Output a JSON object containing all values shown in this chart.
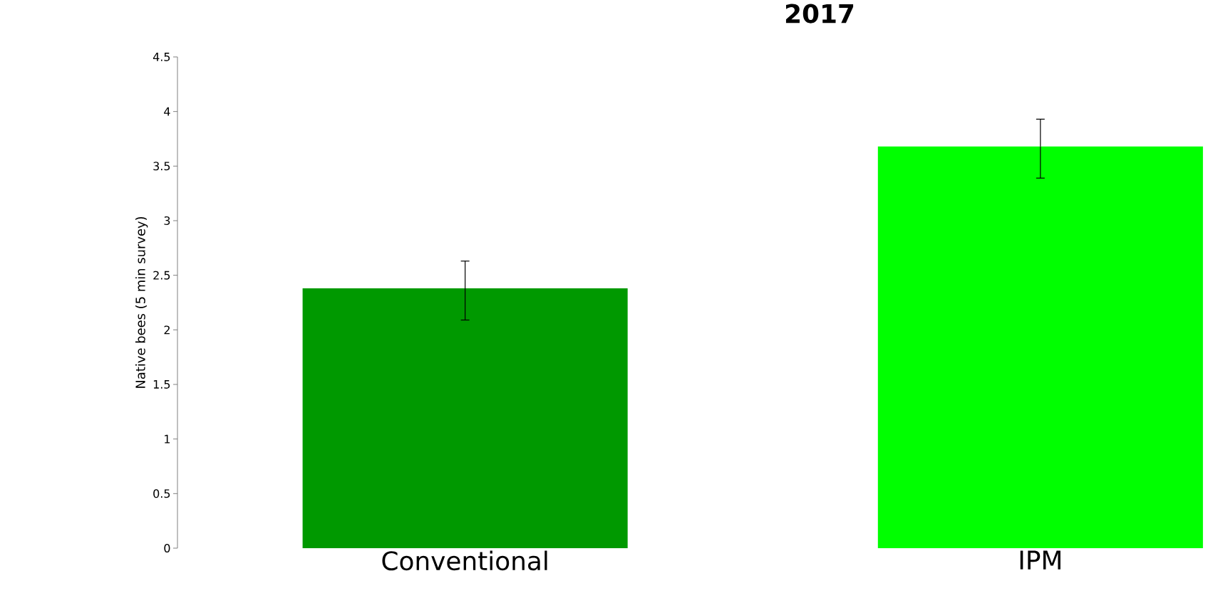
{
  "chart_data": {
    "type": "bar",
    "title": "2017",
    "ylabel": "Native bees (5 min survey)",
    "categories": [
      "Conventional",
      "IPM"
    ],
    "values": [
      2.38,
      3.68
    ],
    "colors": [
      "#009900",
      "#00ff00"
    ],
    "errors": [
      [
        2.09,
        2.63
      ],
      [
        3.39,
        3.93
      ]
    ],
    "ylim": [
      0,
      4.5
    ],
    "yticks": [
      0,
      0.5,
      1,
      1.5,
      2,
      2.5,
      3,
      3.5,
      4,
      4.5
    ]
  }
}
